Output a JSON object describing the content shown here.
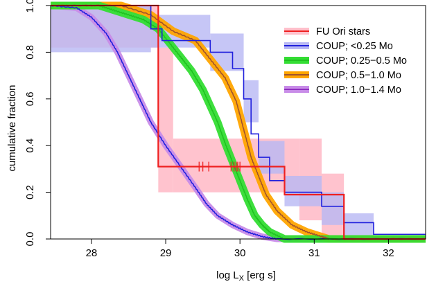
{
  "chart_data": {
    "type": "line",
    "step": true,
    "xlabel": "log L",
    "xlabel_sub": "X",
    "xlabel_units": " [erg s]",
    "ylabel": "cumulative fraction",
    "xlim": [
      27.45,
      32.5
    ],
    "ylim": [
      0,
      1
    ],
    "x_ticks": [
      28,
      29,
      30,
      31,
      32
    ],
    "y_ticks": [
      0.0,
      0.2,
      0.4,
      0.6,
      0.8,
      1.0
    ],
    "x_tick_labels": [
      "28",
      "29",
      "30",
      "31",
      "32"
    ],
    "y_tick_labels": [
      "0.0",
      "0.2",
      "0.4",
      "0.6",
      "0.8",
      "1.0"
    ],
    "legend_position": "top-right",
    "legend": [
      "FU Ori stars",
      "COUP; <0.25 Mo",
      "COUP; 0.25−0.5 Mo",
      "COUP; 0.5−1.0 Mo",
      "COUP; 1.0−1.4 Mo"
    ],
    "series": [
      {
        "name": "FU Ori stars",
        "color": "#ee2020",
        "band_color": "#ffc0cb",
        "points": [
          [
            27.45,
            1.0
          ],
          [
            28.9,
            1.0
          ],
          [
            28.9,
            0.65
          ],
          [
            28.9,
            0.31
          ],
          [
            30.6,
            0.31
          ],
          [
            30.6,
            0.19
          ],
          [
            31.4,
            0.19
          ],
          [
            31.4,
            0.0
          ],
          [
            32.5,
            0.0
          ]
        ],
        "band": [
          [
            27.45,
            0.82,
            1.0
          ],
          [
            28.9,
            0.2,
            0.82
          ],
          [
            29.1,
            0.2,
            0.43
          ],
          [
            30.8,
            0.08,
            0.43
          ],
          [
            31.1,
            0.0,
            0.28
          ],
          [
            31.4,
            0.0,
            0.0
          ]
        ],
        "censored_x": [
          29.45,
          29.5,
          29.58,
          29.88,
          29.92,
          29.95,
          29.97,
          30.0
        ]
      },
      {
        "name": "COUP; <0.25 Mo",
        "color": "#2020dd",
        "band_color": "#b8b8f4",
        "points": [
          [
            27.45,
            1.0
          ],
          [
            28.8,
            1.0
          ],
          [
            28.8,
            0.9
          ],
          [
            28.95,
            0.9
          ],
          [
            28.95,
            0.85
          ],
          [
            29.6,
            0.85
          ],
          [
            29.6,
            0.8
          ],
          [
            29.9,
            0.8
          ],
          [
            29.9,
            0.73
          ],
          [
            30.05,
            0.73
          ],
          [
            30.05,
            0.6
          ],
          [
            30.15,
            0.6
          ],
          [
            30.15,
            0.45
          ],
          [
            30.25,
            0.45
          ],
          [
            30.25,
            0.35
          ],
          [
            30.4,
            0.35
          ],
          [
            30.4,
            0.25
          ],
          [
            30.6,
            0.25
          ],
          [
            30.6,
            0.2
          ],
          [
            31.1,
            0.2
          ],
          [
            31.1,
            0.14
          ],
          [
            31.4,
            0.14
          ],
          [
            31.4,
            0.07
          ],
          [
            31.8,
            0.07
          ],
          [
            31.8,
            0.02
          ],
          [
            32.5,
            0.02
          ]
        ],
        "band": [
          [
            27.45,
            0.8,
            1.0
          ],
          [
            28.8,
            0.82,
            0.96
          ],
          [
            29.6,
            0.72,
            0.88
          ],
          [
            30.05,
            0.5,
            0.68
          ],
          [
            30.25,
            0.28,
            0.42
          ],
          [
            30.6,
            0.14,
            0.27
          ],
          [
            31.1,
            0.06,
            0.2
          ],
          [
            31.4,
            0.01,
            0.11
          ],
          [
            31.8,
            0.0,
            0.04
          ]
        ]
      },
      {
        "name": "COUP; 0.25−0.5 Mo",
        "color": "#20c020",
        "band_color": "#33dd33",
        "points": [
          [
            27.45,
            1.0
          ],
          [
            28.1,
            1.0
          ],
          [
            28.3,
            0.98
          ],
          [
            28.5,
            0.96
          ],
          [
            28.7,
            0.94
          ],
          [
            28.9,
            0.9
          ],
          [
            29.05,
            0.84
          ],
          [
            29.2,
            0.78
          ],
          [
            29.35,
            0.72
          ],
          [
            29.5,
            0.64
          ],
          [
            29.6,
            0.57
          ],
          [
            29.7,
            0.5
          ],
          [
            29.8,
            0.41
          ],
          [
            29.9,
            0.33
          ],
          [
            30.0,
            0.25
          ],
          [
            30.1,
            0.17
          ],
          [
            30.2,
            0.1
          ],
          [
            30.3,
            0.06
          ],
          [
            30.4,
            0.03
          ],
          [
            30.6,
            0.0
          ],
          [
            32.5,
            0.0
          ]
        ]
      },
      {
        "name": "COUP; 0.5−1.0 Mo",
        "color": "#a0522d",
        "band_color": "#ffa500",
        "points": [
          [
            27.45,
            1.0
          ],
          [
            28.4,
            1.0
          ],
          [
            28.8,
            0.96
          ],
          [
            29.1,
            0.89
          ],
          [
            29.4,
            0.85
          ],
          [
            29.6,
            0.77
          ],
          [
            29.8,
            0.69
          ],
          [
            29.95,
            0.59
          ],
          [
            30.05,
            0.47
          ],
          [
            30.15,
            0.35
          ],
          [
            30.25,
            0.27
          ],
          [
            30.35,
            0.19
          ],
          [
            30.5,
            0.12
          ],
          [
            30.7,
            0.06
          ],
          [
            30.9,
            0.03
          ],
          [
            31.1,
            0.01
          ],
          [
            31.2,
            0.0
          ],
          [
            32.5,
            0.0
          ]
        ]
      },
      {
        "name": "COUP; 1.0−1.4 Mo",
        "color": "#2020dd",
        "band_color": "#c88ce8",
        "points": [
          [
            27.45,
            1.0
          ],
          [
            27.8,
            0.99
          ],
          [
            28.0,
            0.95
          ],
          [
            28.2,
            0.88
          ],
          [
            28.35,
            0.8
          ],
          [
            28.5,
            0.7
          ],
          [
            28.65,
            0.6
          ],
          [
            28.8,
            0.5
          ],
          [
            29.0,
            0.4
          ],
          [
            29.2,
            0.31
          ],
          [
            29.4,
            0.22
          ],
          [
            29.55,
            0.15
          ],
          [
            29.7,
            0.1
          ],
          [
            29.9,
            0.06
          ],
          [
            30.1,
            0.03
          ],
          [
            30.3,
            0.01
          ],
          [
            30.5,
            0.0
          ],
          [
            32.5,
            0.0
          ]
        ]
      }
    ]
  }
}
